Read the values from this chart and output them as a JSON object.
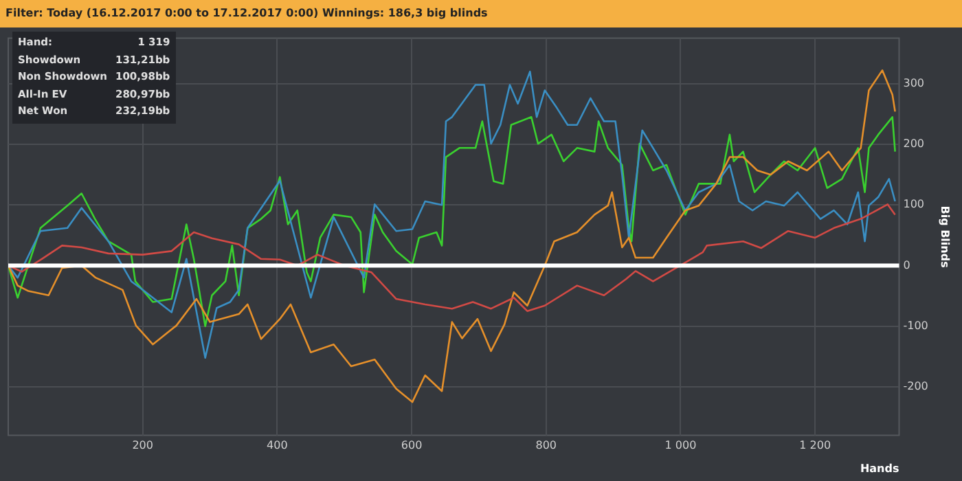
{
  "chart_data": {
    "type": "line",
    "title": "Filter: Today (16.12.2017 0:00 to 17.12.2017 0:00) Winnings: 186,3 big blinds",
    "xlabel": "Hands",
    "ylabel": "Big Blinds",
    "annotations": [
      "Hand:",
      "1 319",
      "Showdown",
      "131,21bb",
      "Non Showdown",
      "100,98bb",
      "All-In EV",
      "280,97bb",
      "Net Won",
      "232,19bb"
    ],
    "xlim": [
      0,
      1325
    ],
    "xticks": [
      200,
      400,
      600,
      800,
      {
        "value": 1000,
        "label": "1 000"
      },
      {
        "value": 1200,
        "label": "1 200"
      }
    ],
    "ylim": [
      -280,
      375
    ],
    "yticks": [
      -200,
      -100,
      0,
      100,
      200,
      300
    ],
    "grid": true,
    "marker": "none",
    "line_style": "solid",
    "ref_lines": [
      {
        "axis": "y",
        "value": 0,
        "color": "#ffffff"
      }
    ],
    "series": [
      {
        "color": "#d24a45",
        "x": [
          0,
          20,
          50,
          80,
          109,
          149,
          200,
          243,
          276,
          303,
          343,
          376,
          404,
          430,
          460,
          500,
          540,
          577,
          620,
          660,
          691,
          718,
          752,
          772,
          798,
          846,
          886,
          919,
          933,
          959,
          999,
          1033,
          1039,
          1093,
          1120,
          1160,
          1200,
          1228,
          1268,
          1308,
          1319
        ],
        "values": [
          0,
          -10,
          11,
          33,
          30,
          20,
          18,
          24,
          55,
          45,
          35,
          11,
          10,
          0,
          18,
          0,
          -11,
          -55,
          -64,
          -71,
          -60,
          -71,
          -53,
          -75,
          -66,
          -33,
          -49,
          -22,
          -9,
          -26,
          0,
          22,
          33,
          40,
          29,
          57,
          46,
          62,
          77,
          101,
          84
        ]
      },
      {
        "color": "#e6902a",
        "x": [
          0,
          14,
          30,
          60,
          80,
          109,
          130,
          170,
          190,
          215,
          250,
          280,
          300,
          343,
          356,
          376,
          404,
          420,
          450,
          484,
          510,
          545,
          577,
          601,
          620,
          645,
          660,
          675,
          698,
          718,
          738,
          752,
          772,
          792,
          798,
          812,
          846,
          872,
          892,
          898,
          913,
          923,
          933,
          959,
          979,
          1007,
          1027,
          1053,
          1073,
          1093,
          1114,
          1134,
          1160,
          1188,
          1220,
          1240,
          1268,
          1280,
          1300,
          1315,
          1319
        ],
        "values": [
          0,
          -33,
          -42,
          -49,
          -4,
          0,
          -20,
          -40,
          -99,
          -130,
          -99,
          -55,
          -93,
          -80,
          -64,
          -121,
          -88,
          -64,
          -143,
          -130,
          -166,
          -155,
          -203,
          -225,
          -181,
          -207,
          -93,
          -120,
          -88,
          -141,
          -97,
          -44,
          -66,
          -15,
          0,
          40,
          55,
          84,
          99,
          121,
          30,
          46,
          13,
          13,
          46,
          91,
          99,
          135,
          179,
          179,
          157,
          150,
          172,
          157,
          188,
          157,
          194,
          289,
          322,
          282,
          254
        ]
      },
      {
        "color": "#3a8fc4",
        "x": [
          0,
          14,
          48,
          88,
          109,
          149,
          183,
          200,
          243,
          265,
          293,
          310,
          330,
          343,
          356,
          404,
          450,
          484,
          529,
          545,
          577,
          601,
          620,
          645,
          651,
          660,
          695,
          708,
          718,
          732,
          746,
          758,
          776,
          786,
          798,
          816,
          832,
          846,
          866,
          886,
          903,
          913,
          923,
          943,
          959,
          979,
          1007,
          1027,
          1053,
          1073,
          1087,
          1107,
          1127,
          1154,
          1174,
          1208,
          1228,
          1248,
          1264,
          1274,
          1280,
          1294,
          1310,
          1319
        ],
        "values": [
          0,
          -20,
          57,
          62,
          95,
          40,
          -26,
          -40,
          -77,
          11,
          -152,
          -70,
          -60,
          -40,
          62,
          140,
          -53,
          80,
          -20,
          101,
          57,
          60,
          106,
          100,
          238,
          245,
          298,
          298,
          201,
          232,
          298,
          267,
          320,
          245,
          289,
          260,
          232,
          232,
          276,
          238,
          238,
          150,
          46,
          223,
          194,
          157,
          91,
          121,
          135,
          166,
          106,
          91,
          106,
          99,
          121,
          77,
          91,
          68,
          121,
          40,
          99,
          113,
          143,
          106
        ]
      },
      {
        "color": "#3ad12f",
        "x": [
          0,
          14,
          48,
          88,
          109,
          129,
          149,
          183,
          189,
          215,
          243,
          265,
          276,
          293,
          303,
          323,
          333,
          343,
          356,
          376,
          390,
          404,
          416,
          430,
          444,
          450,
          464,
          484,
          510,
          524,
          529,
          545,
          557,
          577,
          601,
          611,
          637,
          645,
          651,
          671,
          695,
          705,
          722,
          736,
          748,
          778,
          788,
          808,
          826,
          846,
          872,
          878,
          892,
          913,
          923,
          927,
          939,
          959,
          979,
          1007,
          1027,
          1059,
          1073,
          1079,
          1093,
          1110,
          1134,
          1154,
          1174,
          1200,
          1218,
          1240,
          1264,
          1274,
          1280,
          1294,
          1315,
          1319
        ],
        "values": [
          0,
          -53,
          62,
          99,
          119,
          77,
          40,
          18,
          -26,
          -60,
          -55,
          68,
          11,
          -100,
          -49,
          -26,
          33,
          -49,
          62,
          77,
          91,
          146,
          68,
          91,
          -11,
          -26,
          46,
          84,
          80,
          55,
          -44,
          84,
          55,
          24,
          2,
          46,
          55,
          33,
          179,
          194,
          194,
          238,
          139,
          135,
          232,
          245,
          201,
          216,
          172,
          194,
          188,
          238,
          194,
          166,
          62,
          40,
          201,
          157,
          166,
          84,
          135,
          135,
          216,
          172,
          188,
          121,
          150,
          172,
          157,
          194,
          128,
          143,
          194,
          121,
          194,
          216,
          245,
          188
        ]
      }
    ]
  }
}
